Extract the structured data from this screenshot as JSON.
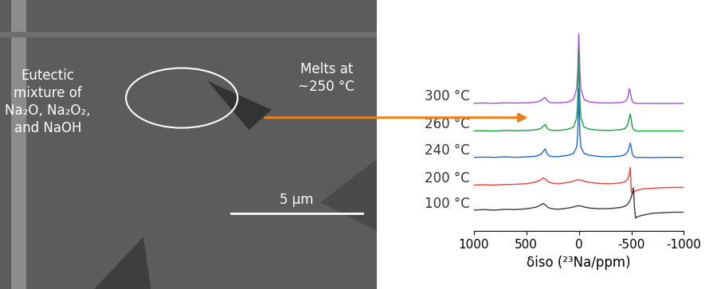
{
  "image": {
    "annotation": "Eutectic\nmixture of\nNa₂O, Na₂O₂,\nand NaOH",
    "scale_bar": "5 µm",
    "arrow_label": "Melts at\n~250 °C"
  },
  "chart_data": {
    "type": "line",
    "x": [
      1000,
      900,
      800,
      700,
      600,
      500,
      450,
      400,
      360,
      340,
      320,
      300,
      280,
      250,
      200,
      150,
      100,
      50,
      20,
      10,
      0,
      -10,
      -20,
      -50,
      -100,
      -200,
      -300,
      -400,
      -440,
      -460,
      -470,
      -480,
      -490,
      -500,
      -510,
      -520,
      -530,
      -540,
      -560,
      -600,
      -700,
      -800,
      -900,
      -1000
    ],
    "series": [
      {
        "name": "300 °C",
        "color": "#a34fe0",
        "values": [
          4.05,
          4.06,
          4.05,
          4.07,
          4.06,
          4.07,
          4.08,
          4.1,
          4.15,
          4.22,
          4.27,
          4.15,
          4.09,
          4.07,
          4.07,
          4.08,
          4.1,
          4.2,
          4.6,
          5.3,
          6.7,
          5.3,
          4.6,
          4.2,
          4.1,
          4.07,
          4.06,
          4.08,
          4.12,
          4.2,
          4.35,
          4.6,
          4.5,
          4.25,
          4.12,
          4.08,
          4.06,
          4.05,
          4.05,
          4.05,
          4.05,
          4.05,
          4.05,
          4.05
        ]
      },
      {
        "name": "260 °C",
        "color": "#1a9e3a",
        "values": [
          3.0,
          3.01,
          3.0,
          3.02,
          3.01,
          3.02,
          3.03,
          3.05,
          3.1,
          3.18,
          3.25,
          3.1,
          3.04,
          3.02,
          3.02,
          3.04,
          3.07,
          3.15,
          3.5,
          4.2,
          6.0,
          4.2,
          3.5,
          3.15,
          3.07,
          3.03,
          3.02,
          3.05,
          3.1,
          3.2,
          3.3,
          3.5,
          3.65,
          3.4,
          3.15,
          3.06,
          3.03,
          3.01,
          3.0,
          3.0,
          3.0,
          3.0,
          3.0,
          3.0
        ]
      },
      {
        "name": "240 °C",
        "color": "#1f63d6",
        "values": [
          2.0,
          2.01,
          2.0,
          2.02,
          2.0,
          2.02,
          2.03,
          2.05,
          2.12,
          2.22,
          2.32,
          2.12,
          2.05,
          2.03,
          2.03,
          2.05,
          2.08,
          2.15,
          2.4,
          2.9,
          4.6,
          2.9,
          2.4,
          2.15,
          2.08,
          2.03,
          2.02,
          2.05,
          2.1,
          2.18,
          2.25,
          2.4,
          2.55,
          2.35,
          2.12,
          2.05,
          2.02,
          2.0,
          2.0,
          2.0,
          1.99,
          2.0,
          2.0,
          2.0
        ]
      },
      {
        "name": "200 °C",
        "color": "#e8413c",
        "values": [
          0.95,
          0.96,
          0.95,
          0.97,
          0.98,
          1.0,
          1.03,
          1.08,
          1.15,
          1.22,
          1.18,
          1.1,
          1.05,
          1.02,
          1.0,
          1.02,
          1.05,
          1.1,
          1.14,
          1.15,
          1.16,
          1.15,
          1.13,
          1.1,
          1.05,
          1.01,
          1.0,
          1.03,
          1.08,
          1.15,
          1.22,
          1.35,
          1.62,
          0.7,
          0.62,
          0.66,
          0.7,
          0.73,
          0.76,
          0.8,
          0.83,
          0.85,
          0.86,
          0.86
        ]
      },
      {
        "name": "100 °C",
        "color": "#3a3a3a",
        "values": [
          0.0,
          0.02,
          0.0,
          0.03,
          0.02,
          0.05,
          0.08,
          0.12,
          0.2,
          0.25,
          0.2,
          0.12,
          0.08,
          0.05,
          0.03,
          0.05,
          0.08,
          0.12,
          0.15,
          0.16,
          0.17,
          0.16,
          0.15,
          0.12,
          0.08,
          0.05,
          0.06,
          0.1,
          0.15,
          0.2,
          0.25,
          0.3,
          0.4,
          0.5,
          0.65,
          0.85,
          0.1,
          -0.3,
          -0.25,
          -0.2,
          -0.12,
          -0.1,
          -0.08,
          -0.08
        ]
      }
    ],
    "xlim": [
      1000,
      -1000
    ],
    "xticks": [
      1000,
      500,
      0,
      -500,
      -1000
    ],
    "xlabel": "δiso (²³Na/ppm)",
    "ylim": [
      -0.8,
      7.2
    ],
    "tick_labels": "x"
  }
}
